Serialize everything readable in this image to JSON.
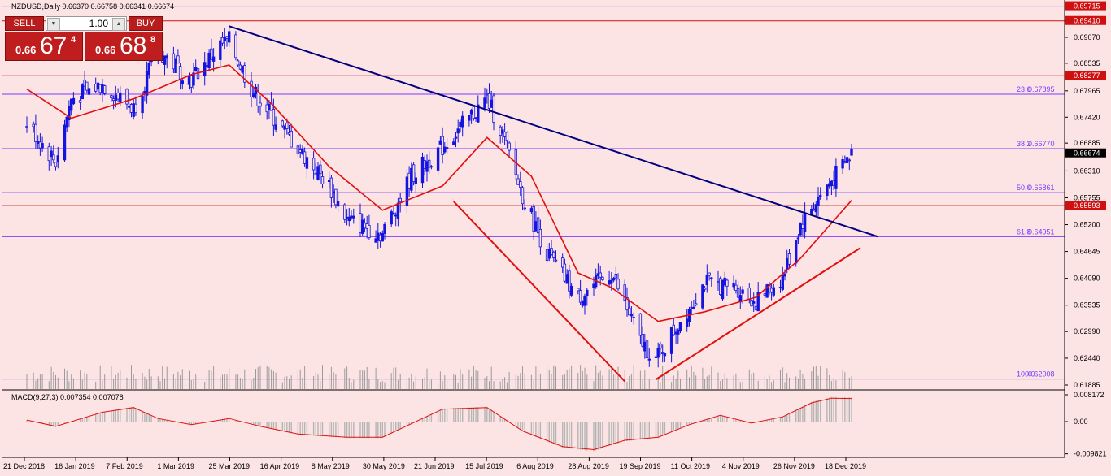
{
  "header": {
    "symbol_line": "NZDUSD,Daily  0.66370 0.66758 0.66341 0.66674"
  },
  "trade_panel": {
    "sell_label": "SELL",
    "buy_label": "BUY",
    "lot_value": "1.00",
    "sell_prefix": "0.66",
    "sell_big": "67",
    "sell_sup": "4",
    "buy_prefix": "0.66",
    "buy_big": "68",
    "buy_sup": "8"
  },
  "chart_data": [
    {
      "type": "candlestick",
      "title": "NZDUSD,Daily",
      "ohlc_last": {
        "open": 0.6637,
        "high": 0.66758,
        "low": 0.66341,
        "close": 0.66674
      },
      "current_price_label": "0.66674",
      "ylim": [
        0.6175,
        0.6975
      ],
      "y_ticks": [
        "0.69070",
        "0.68535",
        "0.67965",
        "0.67420",
        "0.66885",
        "0.66310",
        "0.65755",
        "0.65200",
        "0.64645",
        "0.64090",
        "0.63535",
        "0.62990",
        "0.62440",
        "0.61885"
      ],
      "x_ticks": [
        "21 Dec 2018",
        "16 Jan 2019",
        "7 Feb 2019",
        "1 Mar 2019",
        "25 Mar 2019",
        "16 Apr 2019",
        "8 May 2019",
        "30 May 2019",
        "21 Jun 2019",
        "15 Jul 2019",
        "6 Aug 2019",
        "28 Aug 2019",
        "19 Sep 2019",
        "11 Oct 2019",
        "4 Nov 2019",
        "26 Nov 2019",
        "18 Dec 2019"
      ],
      "close_path": [
        {
          "date": "2018-12-21",
          "value": 0.673
        },
        {
          "date": "2019-01-03",
          "value": 0.665
        },
        {
          "date": "2019-01-10",
          "value": 0.678
        },
        {
          "date": "2019-01-24",
          "value": 0.681
        },
        {
          "date": "2019-02-07",
          "value": 0.676
        },
        {
          "date": "2019-02-18",
          "value": 0.688
        },
        {
          "date": "2019-03-05",
          "value": 0.682
        },
        {
          "date": "2019-03-18",
          "value": 0.689
        },
        {
          "date": "2019-03-22",
          "value": 0.69
        },
        {
          "date": "2019-04-01",
          "value": 0.68
        },
        {
          "date": "2019-04-18",
          "value": 0.67
        },
        {
          "date": "2019-05-06",
          "value": 0.66
        },
        {
          "date": "2019-05-14",
          "value": 0.653
        },
        {
          "date": "2019-05-30",
          "value": 0.65
        },
        {
          "date": "2019-06-03",
          "value": 0.654
        },
        {
          "date": "2019-06-12",
          "value": 0.662
        },
        {
          "date": "2019-06-26",
          "value": 0.668
        },
        {
          "date": "2019-07-16",
          "value": 0.678
        },
        {
          "date": "2019-07-22",
          "value": 0.672
        },
        {
          "date": "2019-08-01",
          "value": 0.658
        },
        {
          "date": "2019-08-12",
          "value": 0.646
        },
        {
          "date": "2019-08-26",
          "value": 0.637
        },
        {
          "date": "2019-09-10",
          "value": 0.642
        },
        {
          "date": "2019-09-23",
          "value": 0.628
        },
        {
          "date": "2019-09-30",
          "value": 0.624
        },
        {
          "date": "2019-10-08",
          "value": 0.63
        },
        {
          "date": "2019-10-22",
          "value": 0.64
        },
        {
          "date": "2019-11-05",
          "value": 0.639
        },
        {
          "date": "2019-11-14",
          "value": 0.636
        },
        {
          "date": "2019-11-26",
          "value": 0.641
        },
        {
          "date": "2019-12-04",
          "value": 0.652
        },
        {
          "date": "2019-12-13",
          "value": 0.658
        },
        {
          "date": "2019-12-23",
          "value": 0.664
        },
        {
          "date": "2019-12-27",
          "value": 0.6667
        }
      ],
      "moving_average_path": [
        {
          "date": "2018-12-21",
          "value": 0.68
        },
        {
          "date": "2019-01-10",
          "value": 0.674
        },
        {
          "date": "2019-02-07",
          "value": 0.678
        },
        {
          "date": "2019-03-05",
          "value": 0.683
        },
        {
          "date": "2019-03-22",
          "value": 0.685
        },
        {
          "date": "2019-04-10",
          "value": 0.677
        },
        {
          "date": "2019-05-06",
          "value": 0.664
        },
        {
          "date": "2019-05-30",
          "value": 0.655
        },
        {
          "date": "2019-06-26",
          "value": 0.66
        },
        {
          "date": "2019-07-16",
          "value": 0.67
        },
        {
          "date": "2019-08-05",
          "value": 0.662
        },
        {
          "date": "2019-08-26",
          "value": 0.642
        },
        {
          "date": "2019-09-10",
          "value": 0.639
        },
        {
          "date": "2019-10-01",
          "value": 0.632
        },
        {
          "date": "2019-10-22",
          "value": 0.634
        },
        {
          "date": "2019-11-14",
          "value": 0.637
        },
        {
          "date": "2019-12-04",
          "value": 0.645
        },
        {
          "date": "2019-12-27",
          "value": 0.657
        }
      ],
      "horizontal_levels": [
        {
          "value": 0.69715,
          "label": "0.69715",
          "color": "#7b3cff",
          "tag_color": "#d01010"
        },
        {
          "value": 0.6941,
          "label": "0.69410",
          "color": "#d01010",
          "tag_color": "#d01010"
        },
        {
          "value": 0.68277,
          "label": "0.68277",
          "color": "#d01010",
          "tag_color": "#d01010"
        },
        {
          "value": 0.65593,
          "label": "0.65593",
          "color": "#d01010",
          "tag_color": "#d01010"
        }
      ],
      "fibonacci": {
        "color": "#7b3cff",
        "levels": [
          {
            "pct": "23.6",
            "value": 0.67895,
            "label": "0.67895"
          },
          {
            "pct": "38.2",
            "value": 0.6677,
            "label": "0.66770"
          },
          {
            "pct": "50.0",
            "value": 0.65861,
            "label": "0.65861"
          },
          {
            "pct": "61.8",
            "value": 0.64951,
            "label": "0.64951"
          },
          {
            "pct": "100.0",
            "value": 0.62008,
            "label": "0.62008"
          }
        ]
      },
      "trendlines": [
        {
          "color": "#000080",
          "from": {
            "date": "2019-03-22",
            "value": 0.693
          },
          "to": {
            "date": "2020-01-08",
            "value": 0.6495
          }
        },
        {
          "color": "#e01010",
          "from": {
            "date": "2019-07-01",
            "value": 0.6568
          },
          "to": {
            "date": "2019-09-16",
            "value": 0.6196
          }
        },
        {
          "color": "#e01010",
          "from": {
            "date": "2019-09-30",
            "value": 0.62
          },
          "to": {
            "date": "2019-12-31",
            "value": 0.6472
          }
        }
      ]
    },
    {
      "type": "bar",
      "title": "MACD(9,27,3) 0.007354 0.007078",
      "ylim": [
        -0.0102,
        0.0092
      ],
      "y_ticks": [
        "0.008172",
        "0.00",
        "-0.009821"
      ],
      "macd_path": [
        {
          "date": "2018-12-21",
          "value": 0.0005
        },
        {
          "date": "2019-01-03",
          "value": -0.0015
        },
        {
          "date": "2019-01-24",
          "value": 0.003
        },
        {
          "date": "2019-02-07",
          "value": 0.0045
        },
        {
          "date": "2019-02-18",
          "value": 0.001
        },
        {
          "date": "2019-03-05",
          "value": -0.001
        },
        {
          "date": "2019-03-22",
          "value": 0.001
        },
        {
          "date": "2019-04-05",
          "value": -0.0015
        },
        {
          "date": "2019-04-22",
          "value": -0.004
        },
        {
          "date": "2019-05-14",
          "value": -0.005
        },
        {
          "date": "2019-05-30",
          "value": -0.005
        },
        {
          "date": "2019-06-26",
          "value": 0.004
        },
        {
          "date": "2019-07-16",
          "value": 0.0045
        },
        {
          "date": "2019-08-01",
          "value": -0.003
        },
        {
          "date": "2019-08-19",
          "value": -0.008
        },
        {
          "date": "2019-09-02",
          "value": -0.009
        },
        {
          "date": "2019-09-16",
          "value": -0.006
        },
        {
          "date": "2019-10-01",
          "value": -0.005
        },
        {
          "date": "2019-10-15",
          "value": -0.001
        },
        {
          "date": "2019-10-29",
          "value": 0.002
        },
        {
          "date": "2019-11-12",
          "value": -0.0005
        },
        {
          "date": "2019-11-26",
          "value": 0.0015
        },
        {
          "date": "2019-12-09",
          "value": 0.006
        },
        {
          "date": "2019-12-18",
          "value": 0.0075
        },
        {
          "date": "2019-12-27",
          "value": 0.0074
        }
      ]
    }
  ]
}
